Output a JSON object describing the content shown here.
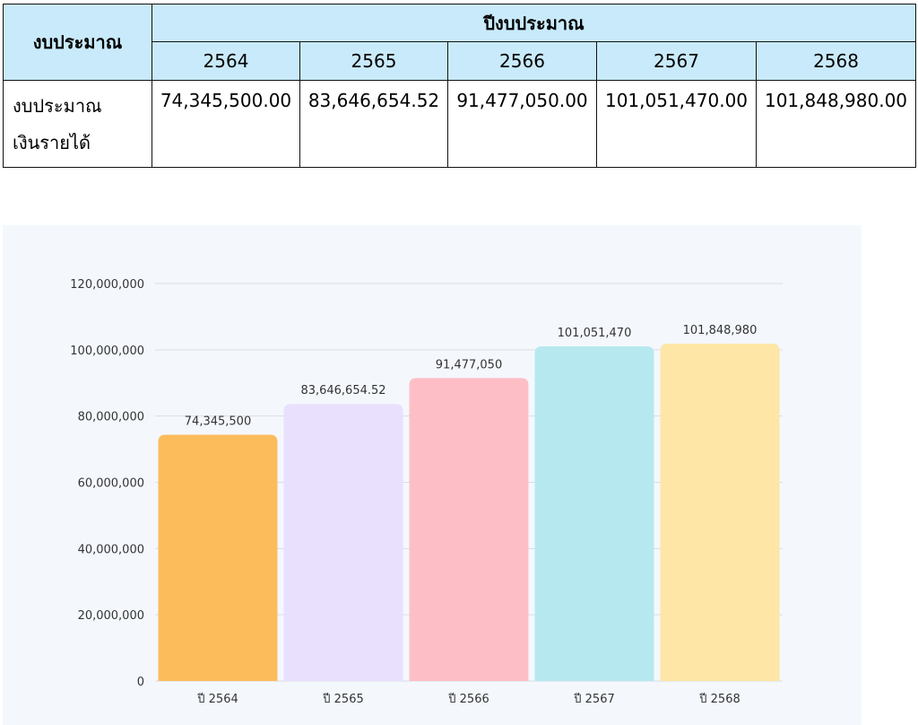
{
  "table": {
    "header_left": "งบประมาณ",
    "header_group": "ปีงบประมาณ",
    "years": [
      "2564",
      "2565",
      "2566",
      "2567",
      "2568"
    ],
    "row_label_line1": "งบประมาณ",
    "row_label_line2": "เงินรายได้",
    "values": [
      "74,345,500.00",
      "83,646,654.52",
      "91,477,050.00",
      "101,051,470.00",
      "101,848,980.00"
    ]
  },
  "chart_data": {
    "type": "bar",
    "title": "",
    "xlabel": "",
    "ylabel": "",
    "categories": [
      "ปี 2564",
      "ปี 2565",
      "ปี 2566",
      "ปี 2567",
      "ปี 2568"
    ],
    "values": [
      74345500,
      83646654.52,
      91477050,
      101051470,
      101848980
    ],
    "data_labels": [
      "74,345,500",
      "83,646,654.52",
      "91,477,050",
      "101,051,470",
      "101,848,980"
    ],
    "y_ticks": [
      0,
      20000000,
      40000000,
      60000000,
      80000000,
      100000000,
      120000000
    ],
    "y_tick_labels": [
      "0",
      "20,000,000",
      "40,000,000",
      "60,000,000",
      "80,000,000",
      "100,000,000",
      "120,000,000"
    ],
    "ylim": [
      0,
      120000000
    ],
    "grid": true,
    "colors": [
      "#fdbc5c",
      "#e8e0fd",
      "#fdbfc5",
      "#b6e9ef",
      "#fde6a6"
    ],
    "gridline_color": "#d9dee4",
    "background": "#f4f8fd"
  }
}
